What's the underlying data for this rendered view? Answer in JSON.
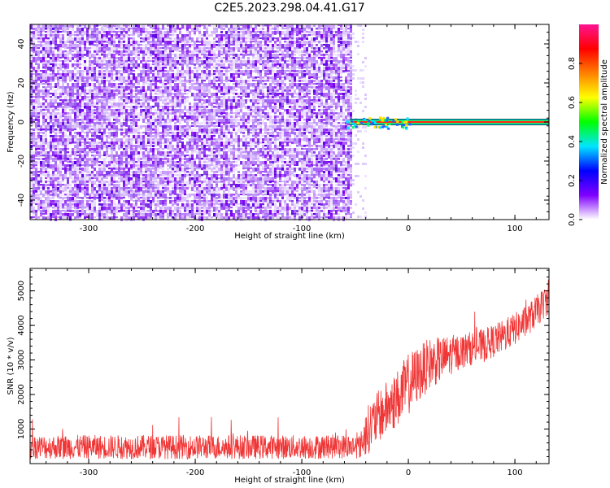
{
  "title": "C2E5.2023.298.04.41.G17",
  "chart_data": [
    {
      "type": "heatmap",
      "xlabel": "Height of straight line (km)",
      "ylabel": "Frequency (Hz)",
      "xlim": [
        -355,
        132
      ],
      "ylim": [
        -50,
        50
      ],
      "xticks": [
        -300,
        -200,
        -100,
        0,
        100
      ],
      "yticks": [
        -40,
        -20,
        0,
        20,
        40
      ],
      "description_of_field": {
        "noise_region_x": [
          -355,
          -55
        ],
        "faint_noise_x": [
          -55,
          -40
        ],
        "signal_line_frequency": 0,
        "signal_start_x": -55
      },
      "colorbar": {
        "label": "Normalized spectral amplitude",
        "range": [
          0,
          1
        ],
        "ticks": [
          0.0,
          0.2,
          0.4,
          0.6,
          0.8
        ],
        "colors": [
          "#ffffff",
          "#7f00ff",
          "#0000ff",
          "#00e5ff",
          "#00ff00",
          "#ffff00",
          "#ff8000",
          "#ff0000",
          "#ff1493"
        ]
      }
    },
    {
      "type": "line",
      "xlabel": "Height of straight line (km)",
      "ylabel": "SNR (10 * v/v)",
      "xlim": [
        -355,
        132
      ],
      "ylim": [
        0,
        5650
      ],
      "xticks": [
        -300,
        -200,
        -100,
        0,
        100
      ],
      "yticks": [
        1000,
        2000,
        3000,
        4000,
        5000
      ],
      "color": "#f03535",
      "trend_points": {
        "x": [
          -355,
          -300,
          -200,
          -100,
          -45,
          -40,
          -30,
          -20,
          -10,
          0,
          10,
          20,
          30,
          40,
          50,
          60,
          70,
          80,
          90,
          100,
          110,
          120,
          132
        ],
        "y": [
          480,
          480,
          480,
          480,
          500,
          900,
          1300,
          1600,
          1900,
          2300,
          2600,
          2900,
          3000,
          3150,
          3250,
          3350,
          3400,
          3550,
          3700,
          3900,
          4100,
          4400,
          4800
        ]
      },
      "noise_amplitude": {
        "x": [
          -355,
          -45,
          -40,
          0,
          50,
          132
        ],
        "y": [
          350,
          350,
          700,
          900,
          500,
          450
        ]
      }
    }
  ]
}
